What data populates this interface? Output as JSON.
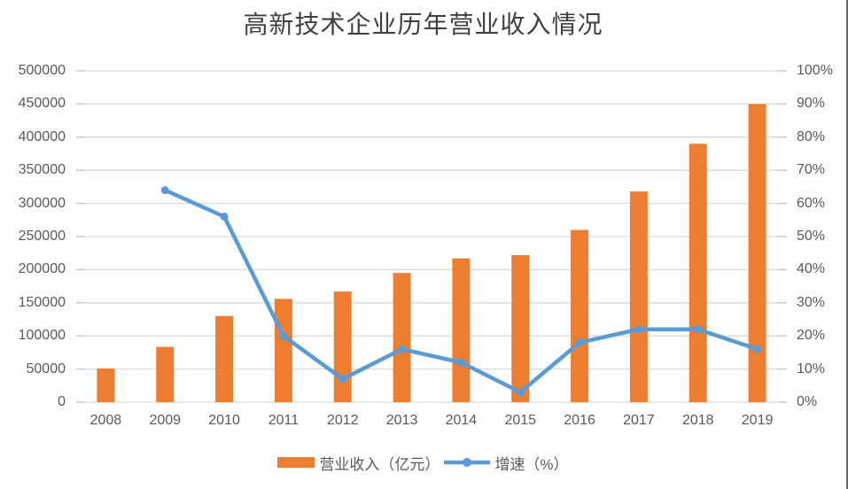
{
  "chart_data": {
    "type": "combo-bar-line",
    "title": "高新技术企业历年营业收入情况",
    "categories": [
      "2008",
      "2009",
      "2010",
      "2011",
      "2012",
      "2013",
      "2014",
      "2015",
      "2016",
      "2017",
      "2018",
      "2019"
    ],
    "series": [
      {
        "name": "营业收入（亿元）",
        "type": "bar",
        "axis": "left",
        "color": "#ED7D31",
        "values": [
          51000,
          83500,
          130000,
          156000,
          167000,
          195000,
          217000,
          222000,
          260000,
          318000,
          390000,
          450000
        ]
      },
      {
        "name": "增速（%）",
        "type": "line",
        "axis": "right",
        "color": "#5B9BD5",
        "values": [
          null,
          64,
          56,
          20,
          7,
          16,
          12,
          3,
          18,
          22,
          22,
          16
        ]
      }
    ],
    "left_axis": {
      "min": 0,
      "max": 500000,
      "step": 50000,
      "tick_labels": [
        "500000",
        "450000",
        "400000",
        "350000",
        "300000",
        "250000",
        "200000",
        "150000",
        "100000",
        "50000",
        "0"
      ]
    },
    "right_axis": {
      "min": 0,
      "max": 100,
      "step": 10,
      "tick_labels": [
        "100%",
        "90%",
        "80%",
        "70%",
        "60%",
        "50%",
        "40%",
        "30%",
        "20%",
        "10%",
        "0%"
      ]
    },
    "grid_color": "#D9D9D9",
    "tick_color": "#C6C6C6",
    "legend_position": "bottom"
  }
}
